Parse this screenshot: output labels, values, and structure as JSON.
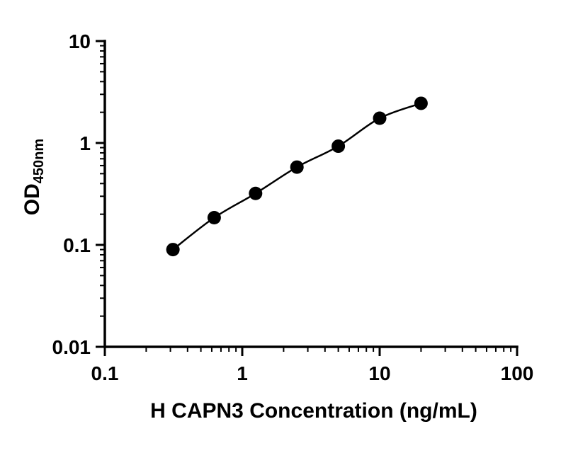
{
  "chart_data": {
    "type": "scatter",
    "title": "",
    "xlabel": "H CAPN3 Concentration (ng/mL)",
    "ylabel_main": "OD",
    "ylabel_sub": "450nm",
    "x": [
      0.313,
      0.625,
      1.25,
      2.5,
      5,
      10,
      20
    ],
    "y": [
      0.09,
      0.185,
      0.32,
      0.58,
      0.93,
      1.75,
      2.45
    ],
    "x_scale": "log",
    "y_scale": "log",
    "xlim": [
      0.1,
      100
    ],
    "ylim": [
      0.01,
      10
    ],
    "xticks": {
      "values": [
        0.1,
        1,
        10,
        100
      ],
      "labels": [
        "0.1",
        "1",
        "10",
        "100"
      ]
    },
    "yticks": {
      "values": [
        0.01,
        0.1,
        1,
        10
      ],
      "labels": [
        "0.01",
        "0.1",
        "1",
        "10"
      ]
    },
    "grid": false,
    "legend": "none",
    "axis_color": "#000000",
    "line_color": "#000000",
    "marker_color": "#000000",
    "background_color": "#ffffff"
  }
}
